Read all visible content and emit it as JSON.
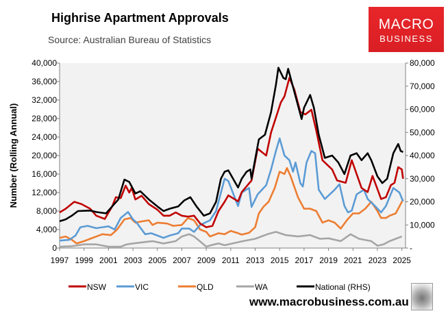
{
  "header": {
    "title": "Highrise Apartment Approvals",
    "subtitle": "Source: Australian Bureau of Statistics"
  },
  "logo": {
    "line1": "MACRO",
    "line2": "BUSINESS",
    "color": "#e8262a"
  },
  "footer": {
    "url": "www.macrobusiness.com.au",
    "mascot_icon": "wolf-icon"
  },
  "chart_data": {
    "type": "line",
    "title": "Highrise Apartment Approvals",
    "ylabel": "Number (Rolling Annual)",
    "ylim": [
      0,
      40000
    ],
    "y2lim": [
      0,
      80000
    ],
    "xlim": [
      1997,
      2025.3
    ],
    "yticks": [
      "0",
      "4,000",
      "8,000",
      "12,000",
      "16,000",
      "20,000",
      "24,000",
      "28,000",
      "32,000",
      "36,000",
      "40,000"
    ],
    "y2ticks": [
      "-",
      "10,000",
      "20,000",
      "30,000",
      "40,000",
      "50,000",
      "60,000",
      "70,000",
      "80,000"
    ],
    "xticks": [
      "1997",
      "1999",
      "2001",
      "2003",
      "2005",
      "2007",
      "2009",
      "2011",
      "2013",
      "2015",
      "2017",
      "2019",
      "2021",
      "2023",
      "2025"
    ],
    "legend_position": "bottom",
    "grid": false,
    "units": "thousands",
    "series": [
      {
        "name": "NSW",
        "color": "#c00000",
        "axis": "left",
        "x": [
          1997,
          1997.5,
          1998.2,
          1998.8,
          1999.5,
          2000,
          2000.7,
          2001.3,
          2001.6,
          2002,
          2002.4,
          2002.7,
          2002.9,
          2003.2,
          2003.7,
          2004.3,
          2005,
          2005.5,
          2006,
          2006.5,
          2007,
          2007.5,
          2008,
          2008.5,
          2009,
          2009.5,
          2010,
          2010.5,
          2010.8,
          2011.6,
          2011.9,
          2012.7,
          2013.2,
          2013.9,
          2014.3,
          2015.1,
          2015.4,
          2015.8,
          2016.2,
          2016.7,
          2017.1,
          2017.6,
          2018,
          2018.5,
          2019.3,
          2019.7,
          2020.4,
          2020.9,
          2021.3,
          2021.7,
          2022.2,
          2022.6,
          2022.97,
          2023.3,
          2023.7,
          2024.1,
          2024.4,
          2024.7,
          2025,
          2025.1
        ],
        "y": [
          7.7,
          8.5,
          10,
          9.5,
          8.5,
          7,
          6.3,
          9,
          11,
          10.8,
          13.5,
          12,
          13,
          10.5,
          11.3,
          9.5,
          8.3,
          7,
          7,
          7.7,
          7,
          6.8,
          7,
          5.3,
          4.5,
          4.8,
          8,
          10,
          11.4,
          10.1,
          12.1,
          14.6,
          21.5,
          20,
          25,
          31.5,
          32.8,
          36.8,
          34.3,
          29.4,
          28.9,
          29.9,
          25.4,
          19,
          17,
          14.6,
          14.1,
          19,
          16,
          13,
          12.1,
          15.6,
          13,
          10.6,
          11,
          13.6,
          14.1,
          17.5,
          17,
          15
        ]
      },
      {
        "name": "VIC",
        "color": "#5b9bd5",
        "axis": "left",
        "x": [
          1997,
          1997.8,
          1998.3,
          1998.7,
          1999.3,
          2000,
          2000.5,
          2001,
          2001.5,
          2002,
          2002.6,
          2003,
          2003.3,
          2004,
          2004.5,
          2005.5,
          2006,
          2006.7,
          2007,
          2007.6,
          2008,
          2008.5,
          2009.3,
          2009.8,
          2010.3,
          2010.5,
          2010.8,
          2011.6,
          2011.9,
          2012.5,
          2012.7,
          2013.2,
          2013.9,
          2014.3,
          2014.7,
          2015,
          2015.4,
          2015.8,
          2016.1,
          2016.3,
          2016.7,
          2016.9,
          2017.2,
          2017.6,
          2017.9,
          2018.2,
          2018.7,
          2019.5,
          2019.9,
          2020.3,
          2020.6,
          2020.9,
          2021.3,
          2021.9,
          2022.2,
          2022.8,
          2023.3,
          2023.7,
          2024.3,
          2024.8,
          2025.1
        ],
        "y": [
          1.6,
          1.8,
          2.7,
          4.5,
          4.8,
          4.3,
          4.5,
          4.7,
          4,
          6.5,
          7.8,
          6.2,
          5.5,
          3,
          3.2,
          2.2,
          2.7,
          3.2,
          4.2,
          4.2,
          3.5,
          5,
          6,
          8,
          13,
          15,
          14.5,
          9.1,
          12,
          13,
          8.9,
          11.6,
          13.6,
          17,
          21,
          23.7,
          20,
          19,
          16.5,
          18.5,
          14,
          13.3,
          18.5,
          21,
          20.5,
          12.6,
          10.6,
          12.6,
          13.8,
          9.1,
          7.7,
          8.1,
          11.6,
          12.6,
          10.6,
          9.1,
          7.7,
          9.1,
          13,
          12,
          10.1
        ]
      },
      {
        "name": "QLD",
        "color": "#ed7d31",
        "axis": "left",
        "x": [
          1997,
          1997.5,
          1998,
          1998.4,
          1999,
          1999.5,
          2000.5,
          2001.2,
          2001.7,
          2002.3,
          2002.8,
          2003.2,
          2003.8,
          2004.3,
          2004.6,
          2005,
          2005.8,
          2006.3,
          2007,
          2007.5,
          2008,
          2008.5,
          2009,
          2009.3,
          2010,
          2010.5,
          2011,
          2011.5,
          2011.9,
          2012.5,
          2013,
          2013.3,
          2013.7,
          2014.1,
          2014.6,
          2015,
          2015.4,
          2015.6,
          2015.9,
          2016.5,
          2017,
          2017.5,
          2018,
          2018.5,
          2019,
          2019.5,
          2020,
          2020.5,
          2021,
          2021.5,
          2022,
          2022.5,
          2023,
          2023.3,
          2023.7,
          2024,
          2024.5,
          2024.8,
          2025.1
        ],
        "y": [
          2.2,
          2.5,
          1.8,
          1,
          1.5,
          2,
          3,
          2.8,
          4,
          6.2,
          6.5,
          5.5,
          5.8,
          6,
          5,
          5.5,
          5.3,
          4.8,
          5,
          6.5,
          6,
          4,
          3.5,
          2.5,
          3.2,
          3,
          3.7,
          3.3,
          2.9,
          3.3,
          4.5,
          7.5,
          9,
          10,
          13,
          16.5,
          16,
          17.3,
          15.5,
          11,
          8.5,
          8.5,
          8,
          5.5,
          6,
          5.5,
          4.2,
          6,
          7.5,
          7.5,
          8.5,
          10,
          8,
          6.5,
          6.5,
          7,
          7.5,
          9,
          10.5
        ]
      },
      {
        "name": "WA",
        "color": "#a5a5a5",
        "axis": "left",
        "x": [
          1997,
          1998,
          1999,
          2000,
          2001,
          2002,
          2002.5,
          2003,
          2004,
          2004.6,
          2005.5,
          2006.5,
          2007,
          2007.6,
          2008,
          2008.6,
          2009,
          2009.5,
          2010,
          2010.5,
          2011,
          2012,
          2013,
          2014,
          2014.7,
          2015.5,
          2016.5,
          2017.5,
          2018.3,
          2019,
          2020,
          2020.8,
          2021.5,
          2022.5,
          2023,
          2023.5,
          2024,
          2024.5,
          2025
        ],
        "y": [
          0.3,
          0.4,
          0.8,
          0.8,
          0.3,
          0.3,
          0.8,
          1,
          1.3,
          1.5,
          1,
          1.5,
          2.5,
          3,
          2.5,
          1.2,
          0.3,
          0.7,
          1,
          0.6,
          0.9,
          1.5,
          2,
          3,
          3.5,
          2.8,
          2.5,
          2.8,
          2,
          2.1,
          1.5,
          3,
          2,
          1.5,
          0.5,
          0.8,
          1.5,
          2,
          2.5
        ]
      },
      {
        "name": "National (RHS)",
        "color": "#000000",
        "axis": "right",
        "x": [
          1997,
          1997.5,
          1998,
          1998.5,
          1999.5,
          2000,
          2000.8,
          2001.3,
          2001.8,
          2002.3,
          2002.7,
          2003.2,
          2003.6,
          2004.3,
          2005,
          2005.5,
          2006,
          2006.7,
          2007.2,
          2007.7,
          2008.2,
          2008.8,
          2009.3,
          2009.8,
          2010.2,
          2010.5,
          2010.8,
          2011.6,
          2011.9,
          2012.3,
          2012.6,
          2012.7,
          2013.3,
          2013.8,
          2014.3,
          2014.7,
          2014.9,
          2015.3,
          2015.5,
          2015.7,
          2016,
          2016.5,
          2016.8,
          2017,
          2017.5,
          2017.8,
          2018.2,
          2018.7,
          2019.3,
          2019.8,
          2020.3,
          2020.8,
          2021.3,
          2021.7,
          2022.2,
          2022.5,
          2023,
          2023.4,
          2023.8,
          2024.3,
          2024.7,
          2024.9,
          2025.1
        ],
        "y": [
          11.6,
          12.4,
          14,
          16,
          16.2,
          15.6,
          15,
          18,
          21,
          29.6,
          28.6,
          23.6,
          24.6,
          21,
          18,
          16,
          17,
          18,
          20.6,
          22,
          18,
          14,
          15,
          20,
          30,
          33,
          33.6,
          26.2,
          30,
          33,
          34,
          30,
          47,
          49,
          58.8,
          70.6,
          78,
          73.6,
          73,
          77.5,
          71.6,
          61.7,
          55.8,
          60.7,
          66.2,
          60.7,
          49,
          39,
          40,
          37,
          32,
          40,
          41,
          38,
          41,
          38,
          31,
          28.1,
          30,
          41,
          45,
          42,
          41.5
        ]
      }
    ]
  }
}
